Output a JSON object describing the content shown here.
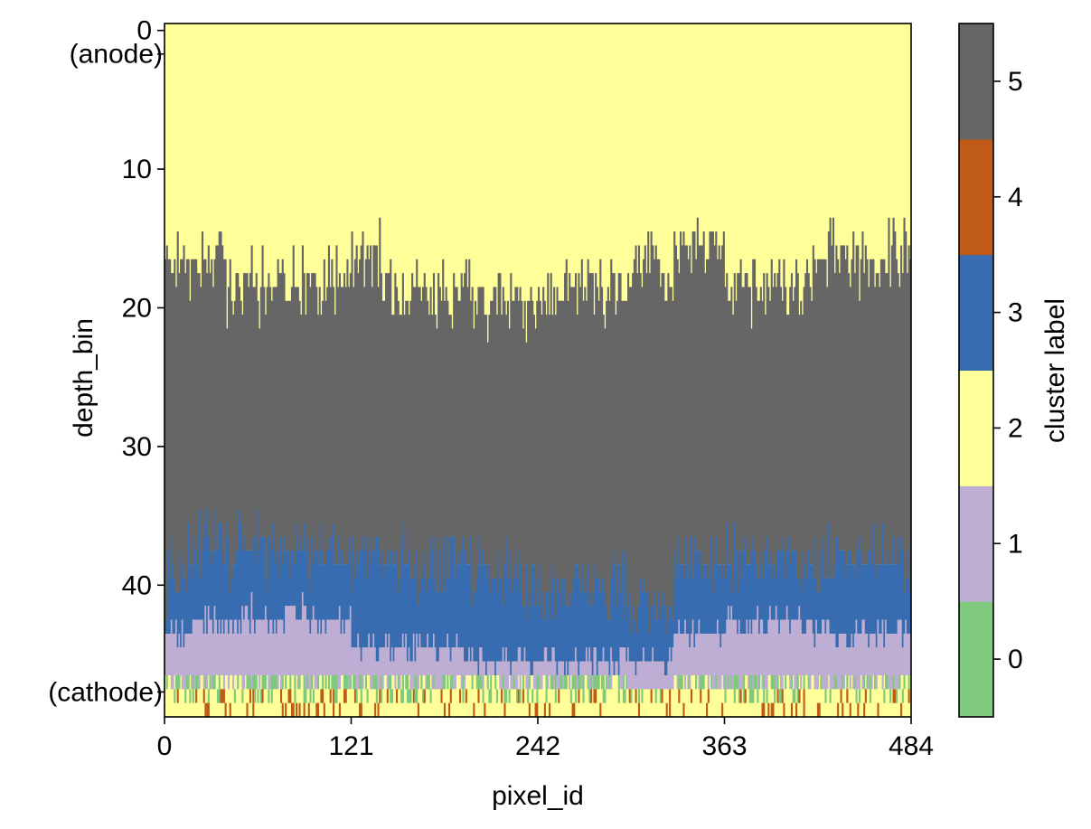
{
  "chart_data": {
    "type": "heatmap",
    "title": "",
    "xlabel": "pixel_id",
    "ylabel": "depth_bin",
    "xlim": [
      0,
      484
    ],
    "ylim": [
      49.5,
      -0.5
    ],
    "x_ticks": [
      {
        "value": 0,
        "label": "0"
      },
      {
        "value": 121,
        "label": "121"
      },
      {
        "value": 242,
        "label": "242"
      },
      {
        "value": 363,
        "label": "363"
      },
      {
        "value": 484,
        "label": "484"
      }
    ],
    "y_ticks": [
      {
        "value": 0,
        "label": "0"
      },
      {
        "value": 10,
        "label": "10"
      },
      {
        "value": 20,
        "label": "20"
      },
      {
        "value": 30,
        "label": "30"
      },
      {
        "value": 40,
        "label": "40"
      }
    ],
    "y_annotations": [
      {
        "value": 1.7,
        "label": "(anode)"
      },
      {
        "value": 47.7,
        "label": "(cathode)"
      }
    ],
    "grid": false,
    "colorbar": {
      "label": "cluster label",
      "placement": "right",
      "categories": [
        {
          "value": 0,
          "label": "0",
          "color": "#7fc97f"
        },
        {
          "value": 1,
          "label": "1",
          "color": "#beaed4"
        },
        {
          "value": 2,
          "label": "2",
          "color": "#ffff99"
        },
        {
          "value": 3,
          "label": "3",
          "color": "#386cb0"
        },
        {
          "value": 4,
          "label": "4",
          "color": "#bf5b17"
        },
        {
          "value": 5,
          "label": "5",
          "color": "#666666"
        }
      ]
    },
    "pixel_count": 484,
    "depth_bins": 50,
    "column_profiles": [
      {
        "x_range": [
          0,
          15
        ],
        "c2_to_5": 17,
        "c5_to_3": 40,
        "c3_to_1": 44,
        "c1_to_0": 47
      },
      {
        "x_range": [
          15,
          40
        ],
        "c2_to_5": 17,
        "c5_to_3": 38,
        "c3_to_1": 43,
        "c1_to_0": 47
      },
      {
        "x_range": [
          40,
          80
        ],
        "c2_to_5": 19,
        "c5_to_3": 38,
        "c3_to_1": 43,
        "c1_to_0": 47
      },
      {
        "x_range": [
          80,
          121
        ],
        "c2_to_5": 19,
        "c5_to_3": 38,
        "c3_to_1": 43,
        "c1_to_0": 47
      },
      {
        "x_range": [
          121,
          140
        ],
        "c2_to_5": 16,
        "c5_to_3": 39,
        "c3_to_1": 45,
        "c1_to_0": 47
      },
      {
        "x_range": [
          140,
          200
        ],
        "c2_to_5": 19,
        "c5_to_3": 39,
        "c3_to_1": 45,
        "c1_to_0": 47
      },
      {
        "x_range": [
          200,
          242
        ],
        "c2_to_5": 20,
        "c5_to_3": 40,
        "c3_to_1": 46,
        "c1_to_0": 47
      },
      {
        "x_range": [
          242,
          300
        ],
        "c2_to_5": 19,
        "c5_to_3": 41,
        "c3_to_1": 46,
        "c1_to_0": 47
      },
      {
        "x_range": [
          300,
          330
        ],
        "c2_to_5": 18,
        "c5_to_3": 42,
        "c3_to_1": 46,
        "c1_to_0": 48
      },
      {
        "x_range": [
          330,
          363
        ],
        "c2_to_5": 16,
        "c5_to_3": 39,
        "c3_to_1": 44,
        "c1_to_0": 47
      },
      {
        "x_range": [
          363,
          420
        ],
        "c2_to_5": 19,
        "c5_to_3": 39,
        "c3_to_1": 43,
        "c1_to_0": 47
      },
      {
        "x_range": [
          420,
          484
        ],
        "c2_to_5": 17,
        "c5_to_3": 39,
        "c3_to_1": 44,
        "c1_to_0": 47
      }
    ],
    "bottom_rows": {
      "row_48": "mostly 2 with scattered 4 and 0",
      "row_49": "mostly 2 with scattered 4"
    }
  }
}
